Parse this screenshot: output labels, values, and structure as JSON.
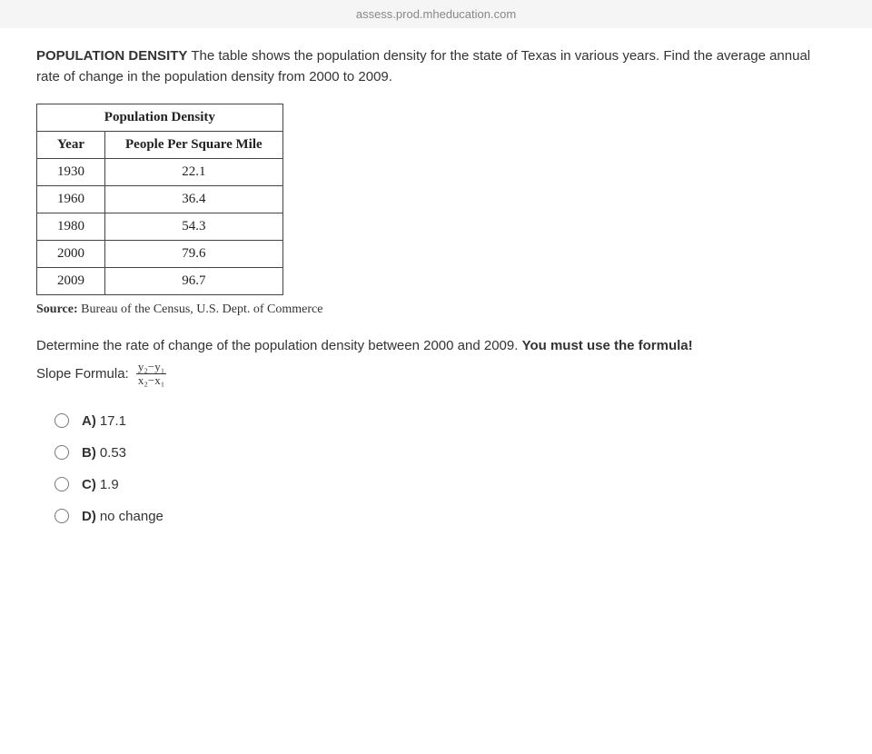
{
  "url_bar": "assess.prod.mheducation.com",
  "prompt": {
    "heading": "POPULATION DENSITY",
    "text": "The table shows the population density for the state of Texas in various years. Find the average annual rate of change in the population density from 2000 to 2009."
  },
  "table": {
    "title": "Population Density",
    "col1": "Year",
    "col2": "People Per Square Mile",
    "rows": [
      {
        "year": "1930",
        "value": "22.1"
      },
      {
        "year": "1960",
        "value": "36.4"
      },
      {
        "year": "1980",
        "value": "54.3"
      },
      {
        "year": "2000",
        "value": "79.6"
      },
      {
        "year": "2009",
        "value": "96.7"
      }
    ]
  },
  "source": {
    "label": "Source:",
    "text": "Bureau of the Census, U.S. Dept. of Commerce"
  },
  "sub_question": {
    "lead": "Determine the rate of change of the population density between 2000 and 2009.",
    "emph": "You must use the formula!"
  },
  "formula": {
    "label": "Slope Formula:",
    "numerator": "y₂−y₁",
    "denominator": "x₂−x₁"
  },
  "options": [
    {
      "letter": "A)",
      "text": "17.1"
    },
    {
      "letter": "B)",
      "text": "0.53"
    },
    {
      "letter": "C)",
      "text": "1.9"
    },
    {
      "letter": "D)",
      "text": "no change"
    }
  ],
  "colors": {
    "text": "#333333",
    "border": "#444444",
    "background": "#ffffff",
    "url": "#888888"
  }
}
